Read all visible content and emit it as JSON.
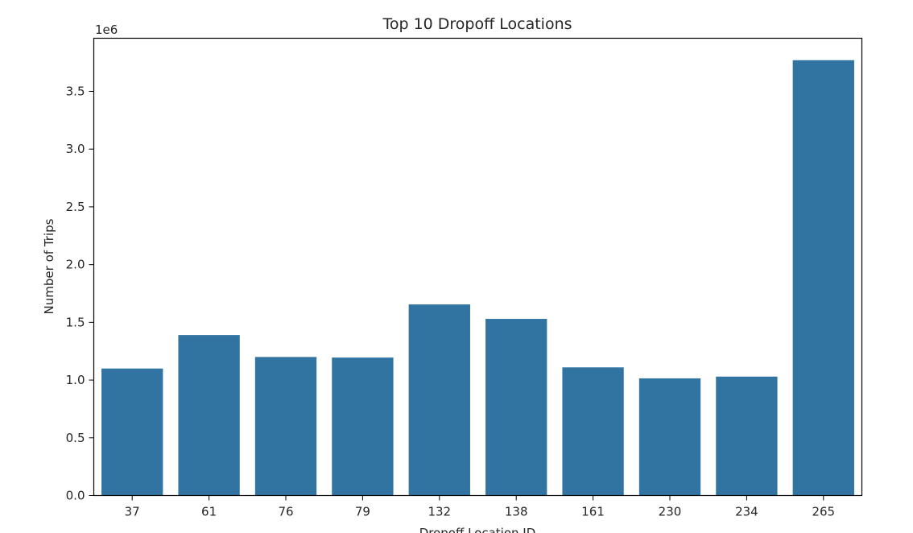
{
  "chart_data": {
    "type": "bar",
    "title": "Top 10 Dropoff Locations",
    "xlabel": "Dropoff Location ID",
    "ylabel": "Number of Trips",
    "offset_label": "1e6",
    "categories": [
      "37",
      "61",
      "76",
      "79",
      "132",
      "138",
      "161",
      "230",
      "234",
      "265"
    ],
    "values": [
      1100000,
      1390000,
      1200000,
      1195000,
      1655000,
      1530000,
      1110000,
      1015000,
      1030000,
      3770000
    ],
    "ylim": [
      0,
      3960000
    ],
    "yticks": [
      0,
      500000,
      1000000,
      1500000,
      2000000,
      2500000,
      3000000,
      3500000
    ],
    "ytick_labels": [
      "0.0",
      "0.5",
      "1.0",
      "1.5",
      "2.0",
      "2.5",
      "3.0",
      "3.5"
    ],
    "bar_color": "#3274a1",
    "grid": false,
    "legend": false
  }
}
